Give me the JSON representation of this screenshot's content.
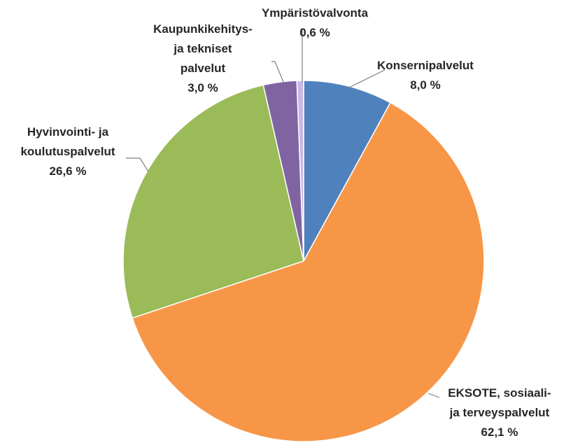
{
  "chart_data": {
    "type": "pie",
    "categories": [
      "Konsernipalvelut",
      "EKSOTE, sosiaali-\nja terveyspalvelut",
      "Hyvinvointi- ja\nkoulutuspalvelut",
      "Kaupunkikehitys-\nja tekniset\npalvelut",
      "Ympäristövalvonta"
    ],
    "values": [
      8.0,
      62.1,
      26.6,
      3.0,
      0.6
    ],
    "value_labels": [
      "8,0 %",
      "62,1 %",
      "26,6 %",
      "3,0 %",
      "0,6 %"
    ],
    "colors": [
      "#4f81bd",
      "#f79646",
      "#9bbb59",
      "#8064a2",
      "#c9b8e3"
    ]
  }
}
